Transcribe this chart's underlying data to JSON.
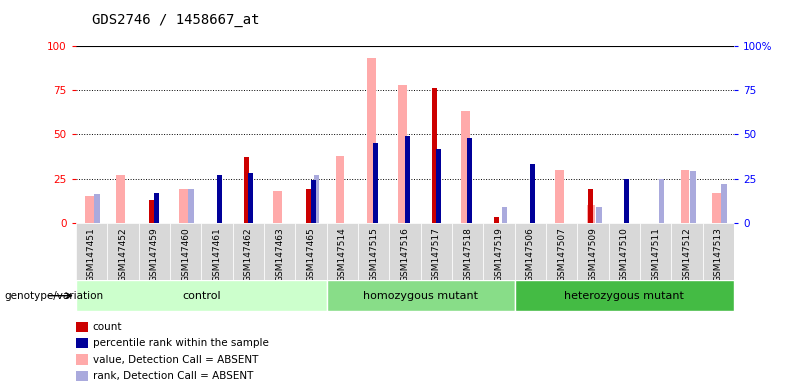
{
  "title": "GDS2746 / 1458667_at",
  "samples": [
    "GSM147451",
    "GSM147452",
    "GSM147459",
    "GSM147460",
    "GSM147461",
    "GSM147462",
    "GSM147463",
    "GSM147465",
    "GSM147514",
    "GSM147515",
    "GSM147516",
    "GSM147517",
    "GSM147518",
    "GSM147519",
    "GSM147506",
    "GSM147507",
    "GSM147509",
    "GSM147510",
    "GSM147511",
    "GSM147512",
    "GSM147513"
  ],
  "group_spans": [
    {
      "name": "control",
      "start": 0,
      "end": 7,
      "color": "#ccffcc"
    },
    {
      "name": "homozygous mutant",
      "start": 8,
      "end": 13,
      "color": "#88dd88"
    },
    {
      "name": "heterozygous mutant",
      "start": 14,
      "end": 20,
      "color": "#44bb44"
    }
  ],
  "count": [
    0,
    0,
    13,
    0,
    0,
    37,
    0,
    19,
    0,
    0,
    0,
    76,
    0,
    3,
    0,
    0,
    19,
    0,
    0,
    0,
    0
  ],
  "percentile_rank": [
    0,
    0,
    17,
    0,
    27,
    28,
    0,
    24,
    0,
    45,
    49,
    42,
    48,
    0,
    33,
    0,
    0,
    25,
    0,
    0,
    0
  ],
  "value_absent": [
    15,
    27,
    0,
    19,
    0,
    0,
    18,
    0,
    38,
    93,
    78,
    0,
    63,
    0,
    0,
    30,
    10,
    0,
    0,
    30,
    17
  ],
  "rank_absent": [
    16,
    0,
    0,
    19,
    0,
    0,
    0,
    27,
    0,
    0,
    0,
    0,
    0,
    9,
    0,
    0,
    9,
    0,
    25,
    29,
    22
  ],
  "ylim": [
    0,
    100
  ],
  "yticks": [
    0,
    25,
    50,
    75,
    100
  ],
  "count_color": "#cc0000",
  "percentile_color": "#000099",
  "value_absent_color": "#ffaaaa",
  "rank_absent_color": "#aaaadd",
  "legend_items": [
    {
      "label": "count",
      "color": "#cc0000"
    },
    {
      "label": "percentile rank within the sample",
      "color": "#000099"
    },
    {
      "label": "value, Detection Call = ABSENT",
      "color": "#ffaaaa"
    },
    {
      "label": "rank, Detection Call = ABSENT",
      "color": "#aaaadd"
    }
  ],
  "genotype_label": "genotype/variation"
}
